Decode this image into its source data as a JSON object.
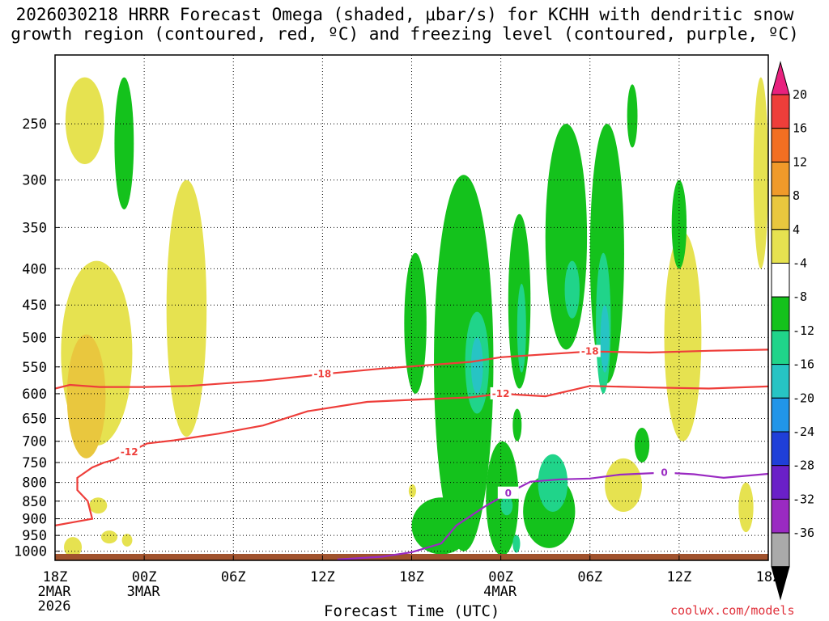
{
  "chart_data": {
    "type": "heatmap",
    "title_line1": "2026030218 HRRR Forecast Omega (shaded, μbar/s) for KCHH with dendritic snow",
    "title_line2": "growth region (contoured, red, ºC) and freezing level (contoured, purple, ºC)",
    "xlabel": "Forecast Time (UTC)",
    "credit": "coolwx.com/models",
    "x_hours": [
      0,
      48
    ],
    "x_ticks": [
      {
        "h": 0,
        "label": "18Z",
        "sub1": "2MAR",
        "sub2": "2026"
      },
      {
        "h": 6,
        "label": "00Z",
        "sub1": "3MAR",
        "sub2": ""
      },
      {
        "h": 12,
        "label": "06Z",
        "sub1": "",
        "sub2": ""
      },
      {
        "h": 18,
        "label": "12Z",
        "sub1": "",
        "sub2": ""
      },
      {
        "h": 24,
        "label": "18Z",
        "sub1": "",
        "sub2": ""
      },
      {
        "h": 30,
        "label": "00Z",
        "sub1": "4MAR",
        "sub2": ""
      },
      {
        "h": 36,
        "label": "06Z",
        "sub1": "",
        "sub2": ""
      },
      {
        "h": 42,
        "label": "12Z",
        "sub1": "",
        "sub2": ""
      },
      {
        "h": 48,
        "label": "18Z",
        "sub1": "",
        "sub2": ""
      }
    ],
    "pressure_levels": [
      250,
      300,
      350,
      400,
      450,
      500,
      550,
      600,
      650,
      700,
      750,
      800,
      850,
      900,
      950,
      1000
    ],
    "p_range": [
      1030,
      200
    ],
    "colorbar": {
      "labels": [
        "20",
        "16",
        "12",
        "8",
        "4",
        "-4",
        "-8",
        "-12",
        "-16",
        "-20",
        "-24",
        "-28",
        "-32",
        "-36"
      ],
      "colors": [
        "#e8217e",
        "#ee3e3a",
        "#f26f22",
        "#f09a2a",
        "#e9c73e",
        "#e6e250",
        "#ffffff",
        "#14c21c",
        "#20d48a",
        "#27c4c4",
        "#2195e8",
        "#1f3fd8",
        "#6a20c8",
        "#9a2ac2",
        "#aaaaaa",
        "#000000"
      ]
    },
    "series": [
      {
        "name": "-18 C isotherm",
        "color": "#ee3e3a",
        "label": "-18",
        "points": [
          [
            0,
            590
          ],
          [
            1,
            583
          ],
          [
            3,
            587
          ],
          [
            6,
            587
          ],
          [
            9,
            585
          ],
          [
            14,
            575
          ],
          [
            18,
            563
          ],
          [
            22,
            553
          ],
          [
            24,
            549
          ],
          [
            28,
            541
          ],
          [
            30,
            533
          ],
          [
            33,
            528
          ],
          [
            36,
            523
          ],
          [
            40,
            525
          ],
          [
            44,
            522
          ],
          [
            48,
            520
          ]
        ]
      },
      {
        "name": "-12 C isotherm",
        "color": "#ee3e3a",
        "label": "-12",
        "points": [
          [
            0,
            920
          ],
          [
            1.5,
            908
          ],
          [
            2.5,
            900
          ],
          [
            2.2,
            850
          ],
          [
            1.5,
            820
          ],
          [
            1.5,
            788
          ],
          [
            2.5,
            762
          ],
          [
            3.3,
            750
          ],
          [
            4,
            743
          ],
          [
            5,
            725
          ],
          [
            6.2,
            705
          ],
          [
            8,
            698
          ],
          [
            11,
            683
          ],
          [
            14,
            665
          ],
          [
            17,
            635
          ],
          [
            21,
            616
          ],
          [
            24,
            612
          ],
          [
            28,
            607
          ],
          [
            30,
            600
          ],
          [
            33,
            605
          ],
          [
            36,
            585
          ],
          [
            40,
            588
          ],
          [
            44,
            590
          ],
          [
            48,
            586
          ]
        ]
      },
      {
        "name": "0 C freezing level",
        "color": "#9a2ac2",
        "label": "0",
        "points": [
          [
            19,
            1027
          ],
          [
            22,
            1018
          ],
          [
            24,
            1003
          ],
          [
            26,
            975
          ],
          [
            27,
            920
          ],
          [
            29,
            863
          ],
          [
            30.5,
            828
          ],
          [
            32,
            798
          ],
          [
            34,
            792
          ],
          [
            36,
            790
          ],
          [
            38,
            780
          ],
          [
            41,
            775
          ],
          [
            43,
            779
          ],
          [
            45,
            788
          ],
          [
            48,
            778
          ]
        ]
      }
    ],
    "shaded_regions": [
      {
        "range": "4 to 8",
        "color": "#e6e250",
        "areas": [
          {
            "h": [
              0.7,
              3.3
            ],
            "p": [
              215,
              285
            ]
          },
          {
            "h": [
              0.4,
              5.2
            ],
            "p": [
              390,
              710
            ]
          },
          {
            "h": [
              7.5,
              10.2
            ],
            "p": [
              300,
              690
            ]
          },
          {
            "h": [
              0.6,
              1.8
            ],
            "p": [
              955,
              1020
            ]
          },
          {
            "h": [
              3.1,
              4.2
            ],
            "p": [
              935,
              975
            ]
          },
          {
            "h": [
              4.5,
              5.2
            ],
            "p": [
              945,
              985
            ]
          },
          {
            "h": [
              2.3,
              3.5
            ],
            "p": [
              840,
              885
            ]
          },
          {
            "h": [
              41,
              43.5
            ],
            "p": [
              355,
              700
            ]
          },
          {
            "h": [
              47,
              48
            ],
            "p": [
              215,
              400
            ]
          },
          {
            "h": [
              46,
              47
            ],
            "p": [
              800,
              940
            ]
          },
          {
            "h": [
              37,
              39.5
            ],
            "p": [
              740,
              880
            ]
          },
          {
            "h": [
              23.8,
              24.3
            ],
            "p": [
              805,
              840
            ]
          }
        ]
      },
      {
        "range": "8 to 12",
        "color": "#e9c73e",
        "areas": [
          {
            "h": [
              0.8,
              3.4
            ],
            "p": [
              495,
              740
            ]
          }
        ]
      },
      {
        "range": "-4 to -8",
        "color": "#14c21c",
        "areas": [
          {
            "h": [
              4,
              5.3
            ],
            "p": [
              215,
              330
            ]
          },
          {
            "h": [
              23.5,
              25
            ],
            "p": [
              380,
              600
            ]
          },
          {
            "h": [
              25.5,
              29.5
            ],
            "p": [
              295,
              1000
            ]
          },
          {
            "h": [
              30.5,
              32
            ],
            "p": [
              335,
              590
            ]
          },
          {
            "h": [
              33,
              35.8
            ],
            "p": [
              250,
              520
            ]
          },
          {
            "h": [
              36,
              38.3
            ],
            "p": [
              250,
              580
            ]
          },
          {
            "h": [
              29,
              31.2
            ],
            "p": [
              700,
              1015
            ]
          },
          {
            "h": [
              31.5,
              35
            ],
            "p": [
              780,
              990
            ]
          },
          {
            "h": [
              24,
              28
            ],
            "p": [
              840,
              1010
            ]
          },
          {
            "h": [
              30.8,
              31.4
            ],
            "p": [
              630,
              700
            ]
          },
          {
            "h": [
              38.5,
              39.2
            ],
            "p": [
              220,
              270
            ]
          },
          {
            "h": [
              39,
              40
            ],
            "p": [
              670,
              750
            ]
          },
          {
            "h": [
              41.5,
              42.5
            ],
            "p": [
              300,
              400
            ]
          }
        ]
      },
      {
        "range": "-8 to -12",
        "color": "#20d48a",
        "areas": [
          {
            "h": [
              27.6,
              29.2
            ],
            "p": [
              460,
              640
            ]
          },
          {
            "h": [
              31.1,
              31.7
            ],
            "p": [
              420,
              560
            ]
          },
          {
            "h": [
              36.4,
              37.4
            ],
            "p": [
              380,
              600
            ]
          },
          {
            "h": [
              34.3,
              35.3
            ],
            "p": [
              390,
              470
            ]
          },
          {
            "h": [
              32.5,
              34.5
            ],
            "p": [
              730,
              880
            ]
          },
          {
            "h": [
              30,
              30.8
            ],
            "p": [
              835,
              890
            ]
          },
          {
            "h": [
              30.8,
              31.3
            ],
            "p": [
              948,
              1005
            ]
          }
        ]
      },
      {
        "range": "-12 to -16",
        "color": "#27c4c4",
        "areas": [
          {
            "h": [
              28,
              28.8
            ],
            "p": [
              500,
              600
            ]
          },
          {
            "h": [
              36.7,
              37.3
            ],
            "p": [
              450,
              560
            ]
          }
        ]
      }
    ]
  }
}
